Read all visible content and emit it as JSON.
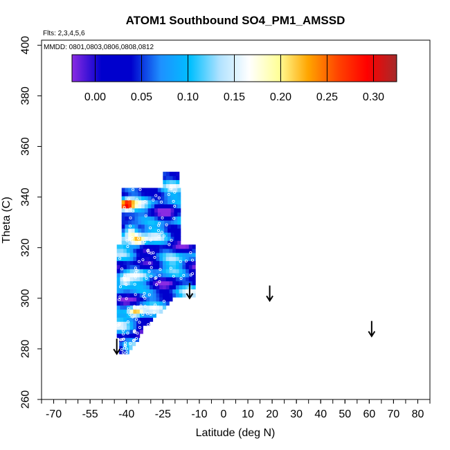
{
  "chart_data": {
    "type": "heatmap",
    "title": "ATOM1 Southbound SO4_PM1_AMSSD",
    "flights_note": "Flts: 2,3,4,5,6",
    "dates_note": "MMDD: 0801,0803,0806,0808,0812",
    "xlabel": "Latitude (deg N)",
    "ylabel": "Theta (C)",
    "xlim": [
      -75,
      85
    ],
    "ylim": [
      260,
      402
    ],
    "x_ticks": [
      -70,
      -55,
      -40,
      -25,
      -10,
      0,
      10,
      20,
      30,
      40,
      50,
      60,
      70,
      80
    ],
    "x_tick_labels": [
      "-70",
      "-55",
      "-40",
      "-25",
      "-10",
      "0",
      "10",
      "20",
      "30",
      "40",
      "50",
      "60",
      "70",
      "80"
    ],
    "y_ticks": [
      260,
      280,
      300,
      320,
      340,
      360,
      380,
      400
    ],
    "y_tick_labels": [
      "260",
      "280",
      "300",
      "320",
      "340",
      "360",
      "380",
      "400"
    ],
    "colorbar": {
      "range": [
        -0.025,
        0.325
      ],
      "ticks": [
        0.0,
        0.05,
        0.1,
        0.15,
        0.2,
        0.25,
        0.3
      ],
      "tick_labels": [
        "0.00",
        "0.05",
        "0.10",
        "0.15",
        "0.20",
        "0.25",
        "0.30"
      ],
      "colors": [
        "#8a2be2",
        "#0000cd",
        "#0000cd",
        "#1e90ff",
        "#00bfff",
        "#b0e2ff",
        "#ffffff",
        "#ffff99",
        "#ffa500",
        "#ff4500",
        "#ff0000",
        "#a52a2a"
      ]
    },
    "arrows": [
      {
        "lat": -44,
        "theta": 281
      },
      {
        "lat": -14,
        "theta": 303
      },
      {
        "lat": 19,
        "theta": 302
      },
      {
        "lat": 61,
        "theta": 288
      }
    ],
    "field_region": {
      "lat_min": -44,
      "lat_max": -12,
      "theta_min": 278,
      "theta_max": 349
    },
    "hot_spots": [
      {
        "lat": -41,
        "theta": 336,
        "value": 0.27
      },
      {
        "lat": -39,
        "theta": 326,
        "value": 0.25
      },
      {
        "lat": -36,
        "theta": 322,
        "value": 0.2
      },
      {
        "lat": -42,
        "theta": 306,
        "value": 0.18
      },
      {
        "lat": -37,
        "theta": 294,
        "value": 0.22
      }
    ]
  }
}
